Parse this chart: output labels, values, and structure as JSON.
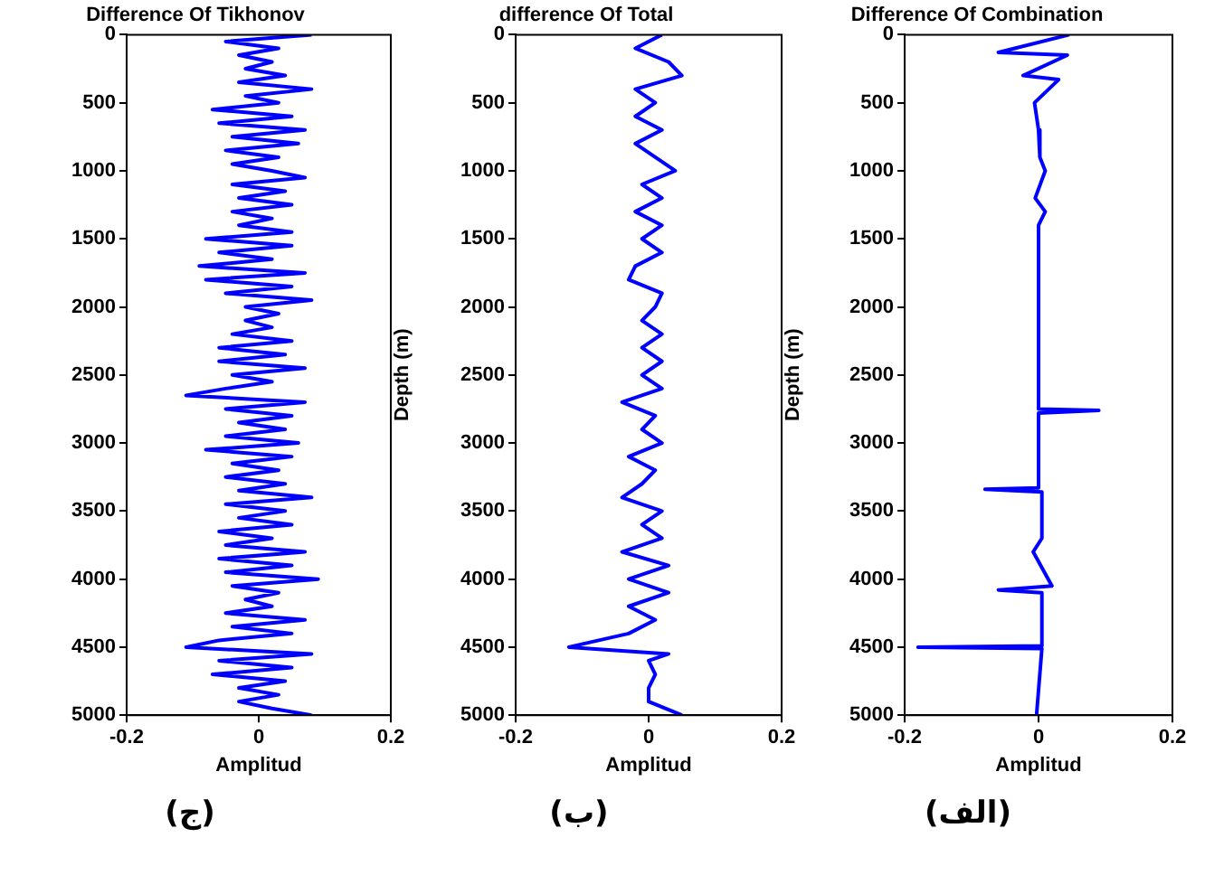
{
  "chart_data": [
    {
      "type": "line",
      "title": "Difference Of Tikhonov",
      "xlabel": "Amplitud",
      "xlim": [
        -0.2,
        0.2
      ],
      "xticks": [
        -0.2,
        0,
        0.2
      ],
      "ylim": [
        5000,
        0
      ],
      "yticks": [
        0,
        500,
        1000,
        1500,
        2000,
        2500,
        3000,
        3500,
        4000,
        4500,
        5000
      ],
      "grid": false,
      "annotations": [
        "(ج)"
      ],
      "series": [
        {
          "color": "#0000ff",
          "x": [
            0.08,
            -0.05,
            0.03,
            -0.03,
            0.02,
            -0.02,
            0.04,
            -0.03,
            0.08,
            -0.02,
            0.03,
            -0.07,
            0.05,
            -0.06,
            0.07,
            -0.04,
            0.06,
            -0.05,
            0.03,
            -0.04,
            0.02,
            0.07,
            -0.04,
            0.04,
            -0.03,
            0.05,
            -0.04,
            0.02,
            -0.03,
            0.05,
            -0.08,
            0.05,
            -0.06,
            0.02,
            -0.09,
            0.07,
            -0.08,
            0.05,
            -0.05,
            0.08,
            -0.02,
            0.03,
            -0.02,
            0.02,
            -0.04,
            0.05,
            -0.06,
            0.04,
            -0.06,
            0.07,
            -0.04,
            0.02,
            -0.05,
            -0.11,
            0.07,
            -0.05,
            0.05,
            -0.03,
            0.04,
            -0.05,
            0.06,
            -0.08,
            0.05,
            -0.04,
            0.03,
            -0.05,
            0.04,
            -0.03,
            0.08,
            -0.05,
            0.04,
            -0.03,
            0.05,
            -0.06,
            0.02,
            -0.05,
            0.07,
            -0.06,
            0.05,
            -0.05,
            0.09,
            -0.04,
            0.03,
            -0.02,
            0.02,
            -0.05,
            0.07,
            -0.04,
            0.05,
            -0.06,
            -0.11,
            0.08,
            -0.06,
            0.05,
            -0.07,
            0.04,
            -0.03,
            0.03,
            -0.03,
            0.02,
            0.08
          ],
          "values": [
            0,
            50,
            100,
            150,
            200,
            250,
            300,
            350,
            400,
            450,
            500,
            550,
            600,
            650,
            700,
            750,
            800,
            850,
            900,
            950,
            1000,
            1050,
            1100,
            1150,
            1200,
            1250,
            1300,
            1350,
            1400,
            1450,
            1500,
            1550,
            1600,
            1650,
            1700,
            1750,
            1800,
            1850,
            1900,
            1950,
            2000,
            2050,
            2100,
            2150,
            2200,
            2250,
            2300,
            2350,
            2400,
            2450,
            2500,
            2550,
            2600,
            2650,
            2700,
            2750,
            2800,
            2850,
            2900,
            2950,
            3000,
            3050,
            3100,
            3150,
            3200,
            3250,
            3300,
            3350,
            3400,
            3450,
            3500,
            3550,
            3600,
            3650,
            3700,
            3750,
            3800,
            3850,
            3900,
            3950,
            4000,
            4050,
            4100,
            4150,
            4200,
            4250,
            4300,
            4350,
            4400,
            4450,
            4500,
            4550,
            4600,
            4650,
            4700,
            4750,
            4800,
            4850,
            4900,
            4950,
            5000
          ]
        }
      ]
    },
    {
      "type": "line",
      "title": "difference Of Total",
      "xlabel": "Amplitud",
      "ylabel": "Depth (m)",
      "xlim": [
        -0.2,
        0.2
      ],
      "xticks": [
        -0.2,
        0,
        0.2
      ],
      "ylim": [
        5000,
        0
      ],
      "yticks": [
        0,
        500,
        1000,
        1500,
        2000,
        2500,
        3000,
        3500,
        4000,
        4500,
        5000
      ],
      "grid": false,
      "annotations": [
        "(ب)"
      ],
      "series": [
        {
          "color": "#0000ff",
          "x": [
            0.02,
            -0.02,
            0.03,
            0.05,
            -0.02,
            0.01,
            -0.02,
            0.02,
            -0.02,
            0.01,
            0.04,
            -0.01,
            0.02,
            -0.02,
            0.02,
            -0.01,
            0.02,
            -0.02,
            -0.03,
            0.02,
            0.01,
            -0.01,
            0.02,
            -0.01,
            0.02,
            -0.01,
            0.02,
            -0.04,
            0.01,
            -0.01,
            0.02,
            -0.03,
            0.01,
            -0.01,
            -0.04,
            0.02,
            -0.01,
            0.02,
            -0.04,
            0.03,
            -0.03,
            0.03,
            -0.03,
            0.01,
            -0.03,
            -0.12,
            0.03,
            0,
            0.01,
            0,
            0,
            0.05
          ],
          "values": [
            0,
            100,
            200,
            300,
            400,
            500,
            600,
            700,
            800,
            900,
            1000,
            1100,
            1200,
            1300,
            1400,
            1500,
            1600,
            1700,
            1800,
            1900,
            2000,
            2100,
            2200,
            2300,
            2400,
            2500,
            2600,
            2700,
            2800,
            2900,
            3000,
            3100,
            3200,
            3300,
            3400,
            3500,
            3600,
            3700,
            3800,
            3900,
            4000,
            4100,
            4200,
            4300,
            4400,
            4500,
            4550,
            4600,
            4700,
            4800,
            4900,
            5000
          ]
        }
      ]
    },
    {
      "type": "line",
      "title": "Difference Of Combination",
      "xlabel": "Amplitud",
      "ylabel": "Depth (m)",
      "xlim": [
        -0.2,
        0.2
      ],
      "xticks": [
        -0.2,
        0,
        0.2
      ],
      "ylim": [
        5000,
        0
      ],
      "yticks": [
        0,
        500,
        1000,
        1500,
        2000,
        2500,
        3000,
        3500,
        4000,
        4500,
        5000
      ],
      "grid": false,
      "annotations": [
        "(الف)"
      ],
      "series": [
        {
          "color": "#0000ff",
          "x": [
            0.046,
            -0.06,
            0.043,
            -0.023,
            0.03,
            -0.006,
            0,
            0.002,
            0.01,
            -0.005,
            0.01,
            0,
            0,
            0.09,
            0,
            0,
            -0.08,
            0.005,
            0.005,
            -0.008,
            0.02,
            -0.06,
            0.005,
            0.005,
            -0.18,
            0.005,
            -0.003
          ],
          "values": [
            0,
            130,
            150,
            300,
            330,
            500,
            700,
            900,
            1000,
            1200,
            1300,
            1400,
            2750,
            2760,
            2780,
            3330,
            3340,
            3360,
            3700,
            3800,
            4050,
            4080,
            4100,
            4490,
            4500,
            4510,
            5000
          ]
        }
      ]
    }
  ]
}
